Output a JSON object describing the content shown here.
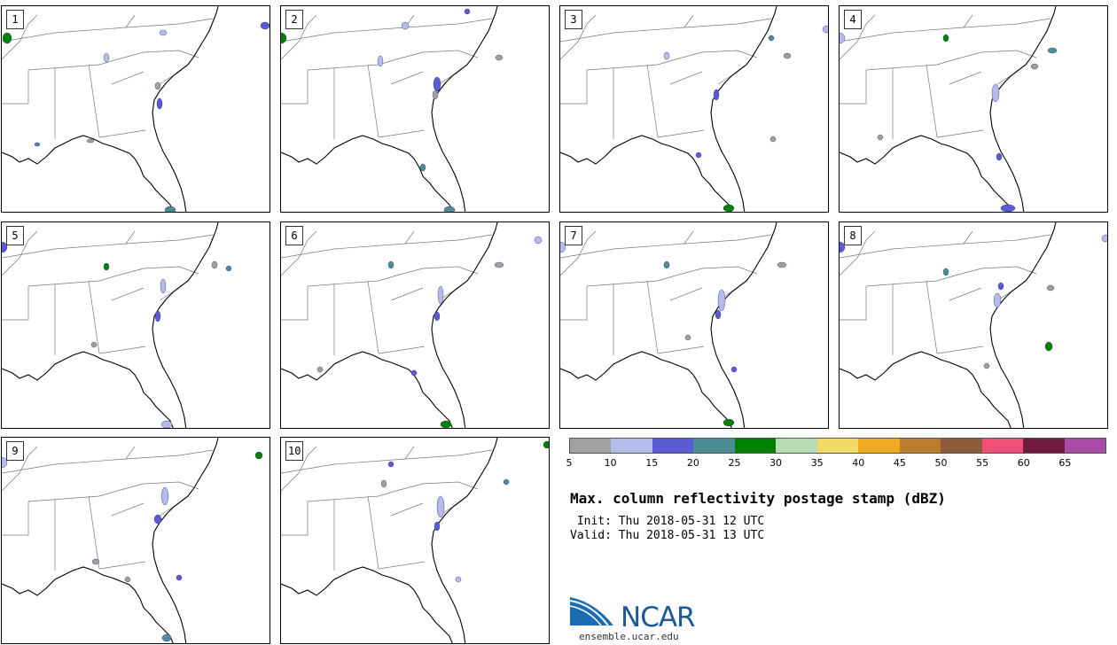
{
  "stamps": [
    {
      "label": "1"
    },
    {
      "label": "2"
    },
    {
      "label": "3"
    },
    {
      "label": "4"
    },
    {
      "label": "5"
    },
    {
      "label": "6"
    },
    {
      "label": "7"
    },
    {
      "label": "8"
    },
    {
      "label": "9"
    },
    {
      "label": "10"
    }
  ],
  "colorbar": {
    "colors": [
      "#a0a0a0",
      "#b4bceb",
      "#5a5ad2",
      "#4b8c96",
      "#008200",
      "#b9dcb4",
      "#f0dc64",
      "#f0aa1e",
      "#b97d2d",
      "#8c5a3c",
      "#f05078",
      "#6e1e3c",
      "#aa4ba5"
    ],
    "ticks": [
      "5",
      "10",
      "15",
      "20",
      "25",
      "30",
      "35",
      "40",
      "45",
      "50",
      "55",
      "60",
      "65"
    ]
  },
  "title": "Max. column reflectivity postage stamp (dBZ)",
  "init": " Init: Thu 2018-05-31 12 UTC",
  "valid": "Valid: Thu 2018-05-31 13 UTC",
  "logo": {
    "name": "NCAR",
    "url": "ensemble.ucar.edu"
  }
}
